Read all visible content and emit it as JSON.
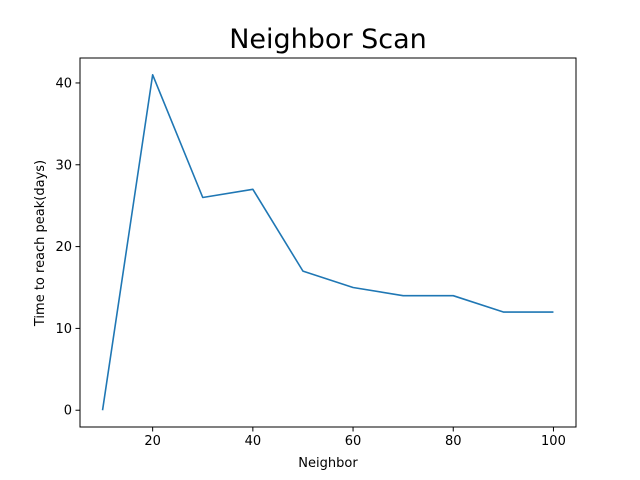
{
  "chart_data": {
    "type": "line",
    "title": "Neighbor Scan",
    "xlabel": "Neighbor",
    "ylabel": "Time to reach peak(days)",
    "xlim": [
      5.5,
      104.5
    ],
    "ylim": [
      -2.05,
      43.05
    ],
    "xticks": [
      20,
      40,
      60,
      80,
      100
    ],
    "yticks": [
      0,
      10,
      20,
      30,
      40
    ],
    "grid": false,
    "legend": "none",
    "series": [
      {
        "color": "#1f77b4",
        "x": [
          10,
          20,
          30,
          40,
          50,
          60,
          70,
          80,
          90,
          100
        ],
        "y": [
          0,
          41,
          26,
          27,
          17,
          15,
          14,
          14,
          12,
          12
        ]
      }
    ]
  }
}
